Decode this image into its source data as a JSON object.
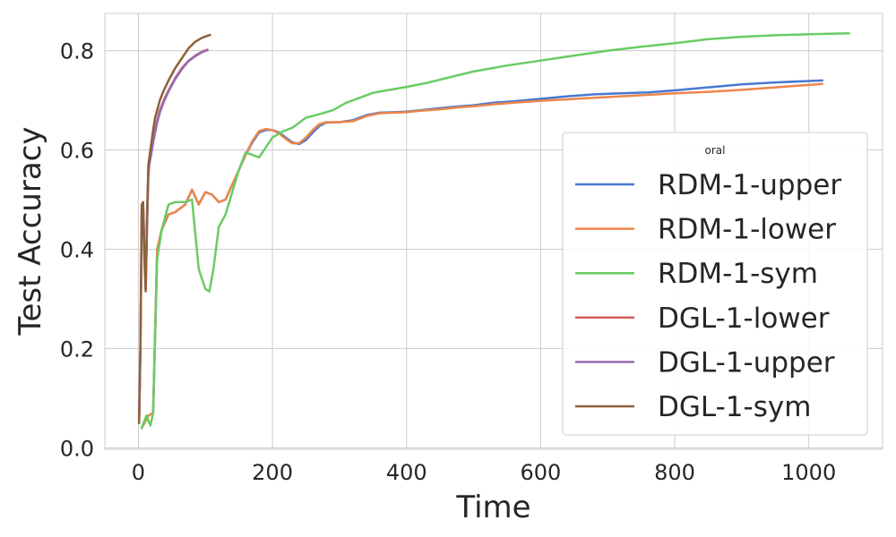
{
  "chart_data": {
    "type": "line",
    "title": "",
    "xlabel": "Time",
    "ylabel": "Test Accuracy",
    "xlim": [
      -50,
      1110
    ],
    "ylim": [
      -0.003,
      0.875
    ],
    "xticks": [
      0,
      200,
      400,
      600,
      800,
      1000
    ],
    "yticks": [
      0.0,
      0.2,
      0.4,
      0.6,
      0.8
    ],
    "xtick_labels": [
      "0",
      "200",
      "400",
      "600",
      "800",
      "1000"
    ],
    "ytick_labels": [
      "0.0",
      "0.2",
      "0.4",
      "0.6",
      "0.8"
    ],
    "grid": true,
    "legend": {
      "title": "oral",
      "location": "center-right"
    },
    "series": [
      {
        "name": "RDM-1-upper",
        "color": "#4878d0",
        "x": [
          5,
          15,
          22,
          28,
          35,
          45,
          55,
          70,
          80,
          90,
          100,
          110,
          120,
          130,
          140,
          150,
          160,
          170,
          180,
          190,
          200,
          210,
          220,
          230,
          240,
          250,
          260,
          270,
          280,
          300,
          320,
          340,
          360,
          380,
          400,
          420,
          450,
          480,
          500,
          530,
          560,
          600,
          640,
          680,
          720,
          760,
          800,
          850,
          900,
          950,
          1020
        ],
        "y": [
          0.04,
          0.065,
          0.07,
          0.4,
          0.44,
          0.47,
          0.475,
          0.49,
          0.52,
          0.49,
          0.515,
          0.51,
          0.495,
          0.5,
          0.53,
          0.56,
          0.59,
          0.615,
          0.635,
          0.64,
          0.64,
          0.635,
          0.625,
          0.615,
          0.612,
          0.62,
          0.635,
          0.648,
          0.655,
          0.656,
          0.66,
          0.67,
          0.675,
          0.676,
          0.677,
          0.68,
          0.684,
          0.688,
          0.69,
          0.695,
          0.698,
          0.703,
          0.708,
          0.712,
          0.714,
          0.716,
          0.72,
          0.726,
          0.732,
          0.736,
          0.74
        ]
      },
      {
        "name": "RDM-1-lower",
        "color": "#ee854a",
        "x": [
          5,
          15,
          22,
          28,
          35,
          45,
          55,
          70,
          80,
          90,
          100,
          110,
          120,
          130,
          140,
          150,
          160,
          170,
          180,
          190,
          200,
          210,
          220,
          230,
          240,
          250,
          260,
          270,
          280,
          300,
          320,
          340,
          360,
          380,
          400,
          420,
          450,
          480,
          500,
          530,
          560,
          600,
          640,
          680,
          720,
          760,
          800,
          850,
          900,
          950,
          1020
        ],
        "y": [
          0.04,
          0.065,
          0.07,
          0.4,
          0.44,
          0.47,
          0.475,
          0.49,
          0.52,
          0.49,
          0.515,
          0.51,
          0.495,
          0.5,
          0.53,
          0.56,
          0.59,
          0.618,
          0.638,
          0.642,
          0.64,
          0.633,
          0.622,
          0.613,
          0.614,
          0.625,
          0.64,
          0.652,
          0.656,
          0.656,
          0.658,
          0.668,
          0.674,
          0.675,
          0.676,
          0.679,
          0.682,
          0.686,
          0.688,
          0.692,
          0.695,
          0.699,
          0.702,
          0.705,
          0.708,
          0.711,
          0.714,
          0.717,
          0.721,
          0.726,
          0.733
        ]
      },
      {
        "name": "RDM-1-sym",
        "color": "#6acc64",
        "x": [
          5,
          12,
          18,
          22,
          28,
          35,
          45,
          55,
          70,
          80,
          90,
          100,
          106,
          112,
          120,
          130,
          140,
          150,
          160,
          170,
          180,
          190,
          200,
          215,
          230,
          250,
          270,
          290,
          310,
          330,
          350,
          370,
          400,
          430,
          460,
          500,
          550,
          600,
          650,
          700,
          750,
          800,
          850,
          900,
          950,
          1000,
          1060
        ],
        "y": [
          0.04,
          0.065,
          0.045,
          0.07,
          0.38,
          0.44,
          0.49,
          0.495,
          0.495,
          0.5,
          0.36,
          0.32,
          0.315,
          0.36,
          0.445,
          0.47,
          0.515,
          0.56,
          0.595,
          0.59,
          0.585,
          0.605,
          0.625,
          0.637,
          0.645,
          0.665,
          0.672,
          0.68,
          0.695,
          0.705,
          0.715,
          0.72,
          0.727,
          0.735,
          0.745,
          0.758,
          0.77,
          0.78,
          0.79,
          0.8,
          0.808,
          0.815,
          0.823,
          0.828,
          0.831,
          0.833,
          0.835
        ]
      },
      {
        "name": "DGL-1-lower",
        "color": "#d65f5f",
        "x": [
          1,
          3,
          5,
          7,
          9,
          11,
          13,
          15,
          17,
          19,
          22,
          25,
          28,
          32,
          38,
          45,
          55,
          65,
          75,
          85,
          95,
          103
        ],
        "y": [
          0.05,
          0.2,
          0.48,
          0.495,
          0.4,
          0.32,
          0.45,
          0.55,
          0.58,
          0.6,
          0.62,
          0.64,
          0.66,
          0.68,
          0.7,
          0.72,
          0.745,
          0.765,
          0.78,
          0.79,
          0.798,
          0.802
        ]
      },
      {
        "name": "DGL-1-upper",
        "color": "#956cb4",
        "x": [
          1,
          3,
          5,
          7,
          9,
          11,
          13,
          15,
          17,
          19,
          22,
          25,
          28,
          32,
          38,
          45,
          55,
          65,
          75,
          85,
          95,
          103
        ],
        "y": [
          0.05,
          0.2,
          0.48,
          0.495,
          0.4,
          0.32,
          0.45,
          0.56,
          0.575,
          0.59,
          0.615,
          0.635,
          0.655,
          0.675,
          0.697,
          0.718,
          0.743,
          0.763,
          0.779,
          0.789,
          0.797,
          0.801
        ]
      },
      {
        "name": "DGL-1-sym",
        "color": "#8c613c",
        "x": [
          1,
          3,
          5,
          7,
          9,
          11,
          13,
          15,
          17,
          19,
          22,
          25,
          28,
          32,
          38,
          45,
          55,
          65,
          75,
          85,
          95,
          107
        ],
        "y": [
          0.05,
          0.2,
          0.49,
          0.495,
          0.38,
          0.315,
          0.47,
          0.57,
          0.59,
          0.61,
          0.64,
          0.665,
          0.68,
          0.7,
          0.72,
          0.74,
          0.765,
          0.785,
          0.805,
          0.818,
          0.826,
          0.832
        ]
      }
    ]
  }
}
